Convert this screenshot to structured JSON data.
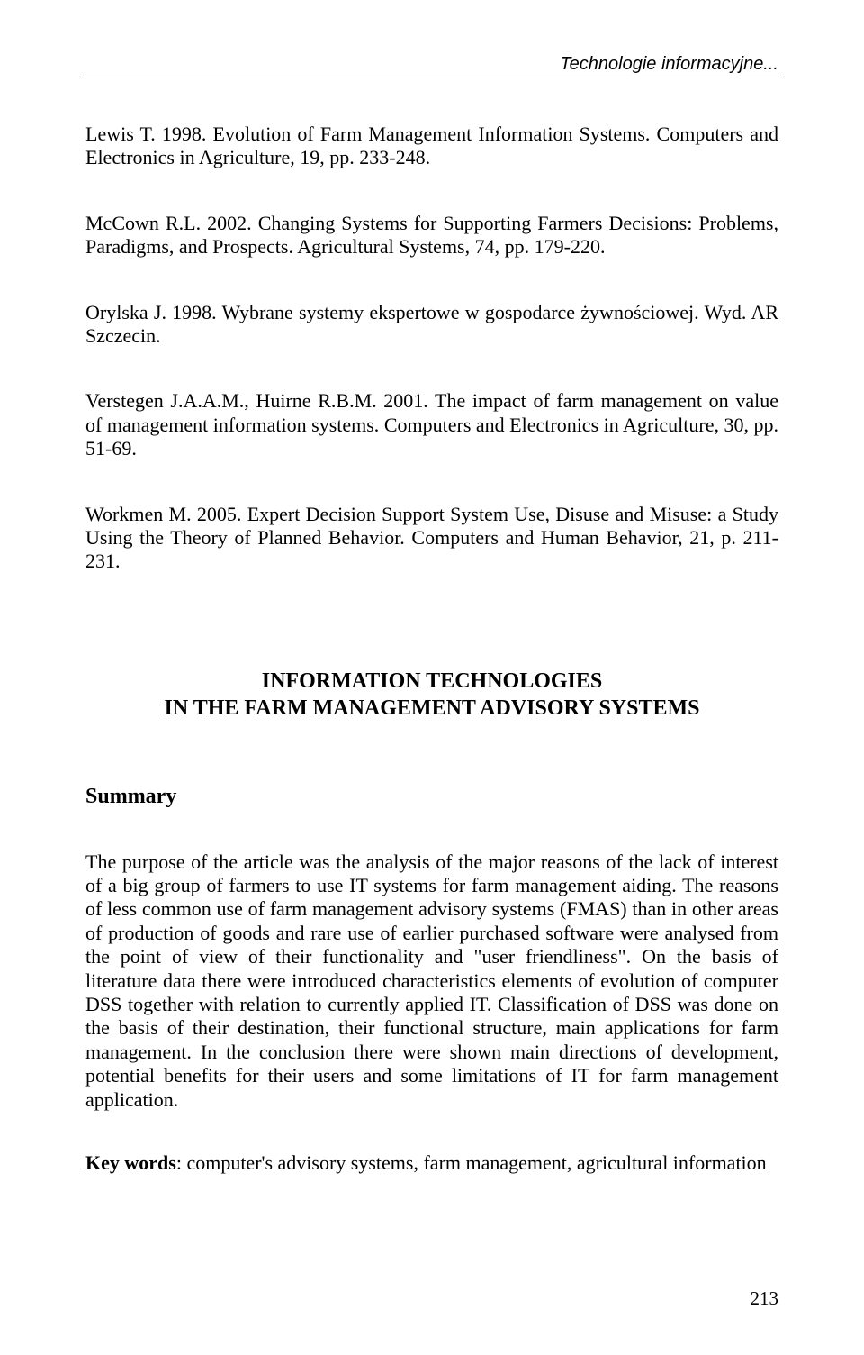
{
  "runningHeader": "Technologie informacyjne...",
  "references": [
    "Lewis T. 1998. Evolution of Farm Management Information Systems. Computers and Electronics in Agriculture, 19, pp. 233-248.",
    "McCown R.L. 2002. Changing Systems for Supporting Farmers Decisions: Problems, Paradigms, and Prospects. Agricultural Systems, 74, pp. 179-220.",
    "Orylska J. 1998. Wybrane systemy ekspertowe w gospodarce żywnościowej. Wyd. AR Szczecin.",
    "Verstegen J.A.A.M., Huirne R.B.M. 2001. The impact of farm management on value of management information systems. Computers and Electronics in Agriculture, 30, pp. 51-69.",
    "Workmen M. 2005. Expert Decision Support System Use, Disuse and Misuse: a Study Using the Theory of Planned Behavior. Computers and Human Behavior, 21, p. 211-231."
  ],
  "sectionTitle": {
    "line1": "INFORMATION TECHNOLOGIES",
    "line2": "IN THE FARM MANAGEMENT ADVISORY SYSTEMS"
  },
  "summaryHeading": "Summary",
  "summaryBody": "The purpose of the article was the analysis of the major reasons of the lack of interest of a big group of farmers to use IT systems for farm management aiding. The reasons of less common use of farm management advisory systems  (FMAS) than in other areas of production of goods and rare use of earlier purchased software were analysed from the point of view of  their functionality and \"user friendliness\". On the basis of literature data there were introduced characteristics elements of evolution of computer DSS together with relation to currently applied IT. Classification of DSS was done on the basis of their destination, their functional structure, main applications for farm management. In the conclusion there were shown main directions of development, potential benefits for their users and some limitations of IT for farm management application.",
  "keywordsLabel": "Key words",
  "keywordsText": ": computer's advisory systems, farm management, agricultural information",
  "pageNumber": "213",
  "colors": {
    "text": "#000000",
    "background": "#ffffff",
    "rule": "#000000"
  },
  "typography": {
    "bodyFontFamily": "Times New Roman",
    "headerFontFamily": "Arial",
    "bodyFontSizePt": 16,
    "titleFontSizePt": 18,
    "lineHeight": 1.2
  }
}
